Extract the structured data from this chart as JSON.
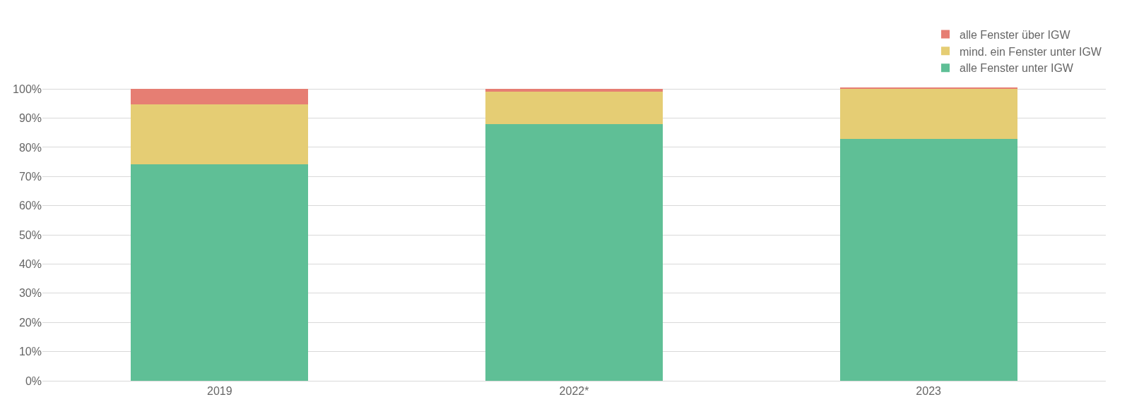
{
  "chart_data": {
    "type": "bar",
    "stacked": true,
    "categories": [
      "2019",
      "2022*",
      "2023"
    ],
    "series": [
      {
        "name": "alle Fenster unter IGW",
        "color": "#5fbf96",
        "values": [
          74.2,
          87.9,
          82.9
        ]
      },
      {
        "name": "mind. ein Fenster unter IGW",
        "color": "#e5cd74",
        "values": [
          20.5,
          11.1,
          17.1
        ]
      },
      {
        "name": "alle Fenster über IGW",
        "color": "#e67e73",
        "values": [
          5.3,
          1.0,
          0.5
        ]
      }
    ],
    "ylim": [
      0,
      101
    ],
    "yticks": [
      {
        "value": 0,
        "label": "0%"
      },
      {
        "value": 10,
        "label": "10%"
      },
      {
        "value": 20,
        "label": "20%"
      },
      {
        "value": 30,
        "label": "30%"
      },
      {
        "value": 40,
        "label": "40%"
      },
      {
        "value": 50,
        "label": "50%"
      },
      {
        "value": 60,
        "label": "60%"
      },
      {
        "value": 70,
        "label": "70%"
      },
      {
        "value": 80,
        "label": "80%"
      },
      {
        "value": 90,
        "label": "90%"
      },
      {
        "value": 100,
        "label": "100%"
      }
    ],
    "grid": "y",
    "legend": "top right"
  }
}
